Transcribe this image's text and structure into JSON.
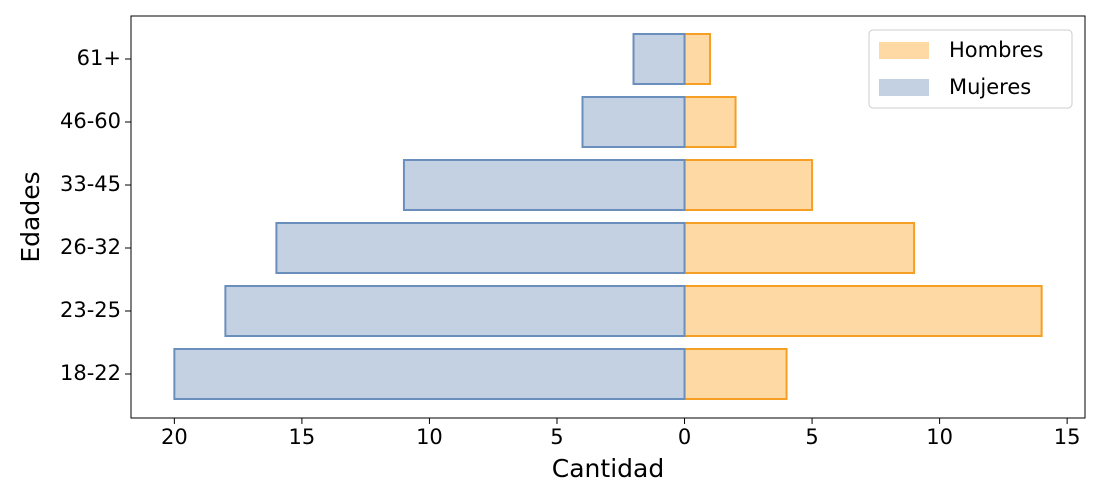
{
  "chart_data": {
    "type": "barh",
    "xlabel": "Cantidad",
    "ylabel": "Edades",
    "categories": [
      "18-22",
      "23-25",
      "26-32",
      "33-45",
      "46-60",
      "61+"
    ],
    "series": [
      {
        "name": "Hombres",
        "color": "#ffd9a3",
        "edgecolor": "#f5a025",
        "values": [
          4,
          14,
          9,
          5,
          2,
          1
        ]
      },
      {
        "name": "Mujeres",
        "color": "#c4d1e2",
        "edgecolor": "#6a8fbd",
        "values": [
          -20,
          -18,
          -16,
          -11,
          -4,
          -2
        ]
      }
    ],
    "xlim": [
      -21.7,
      15.7
    ],
    "xticks": [
      {
        "value": -20,
        "label": "20"
      },
      {
        "value": -15,
        "label": "15"
      },
      {
        "value": -10,
        "label": "10"
      },
      {
        "value": -5,
        "label": "5"
      },
      0,
      5,
      10,
      15
    ],
    "legend": "upper right",
    "grid": false
  }
}
